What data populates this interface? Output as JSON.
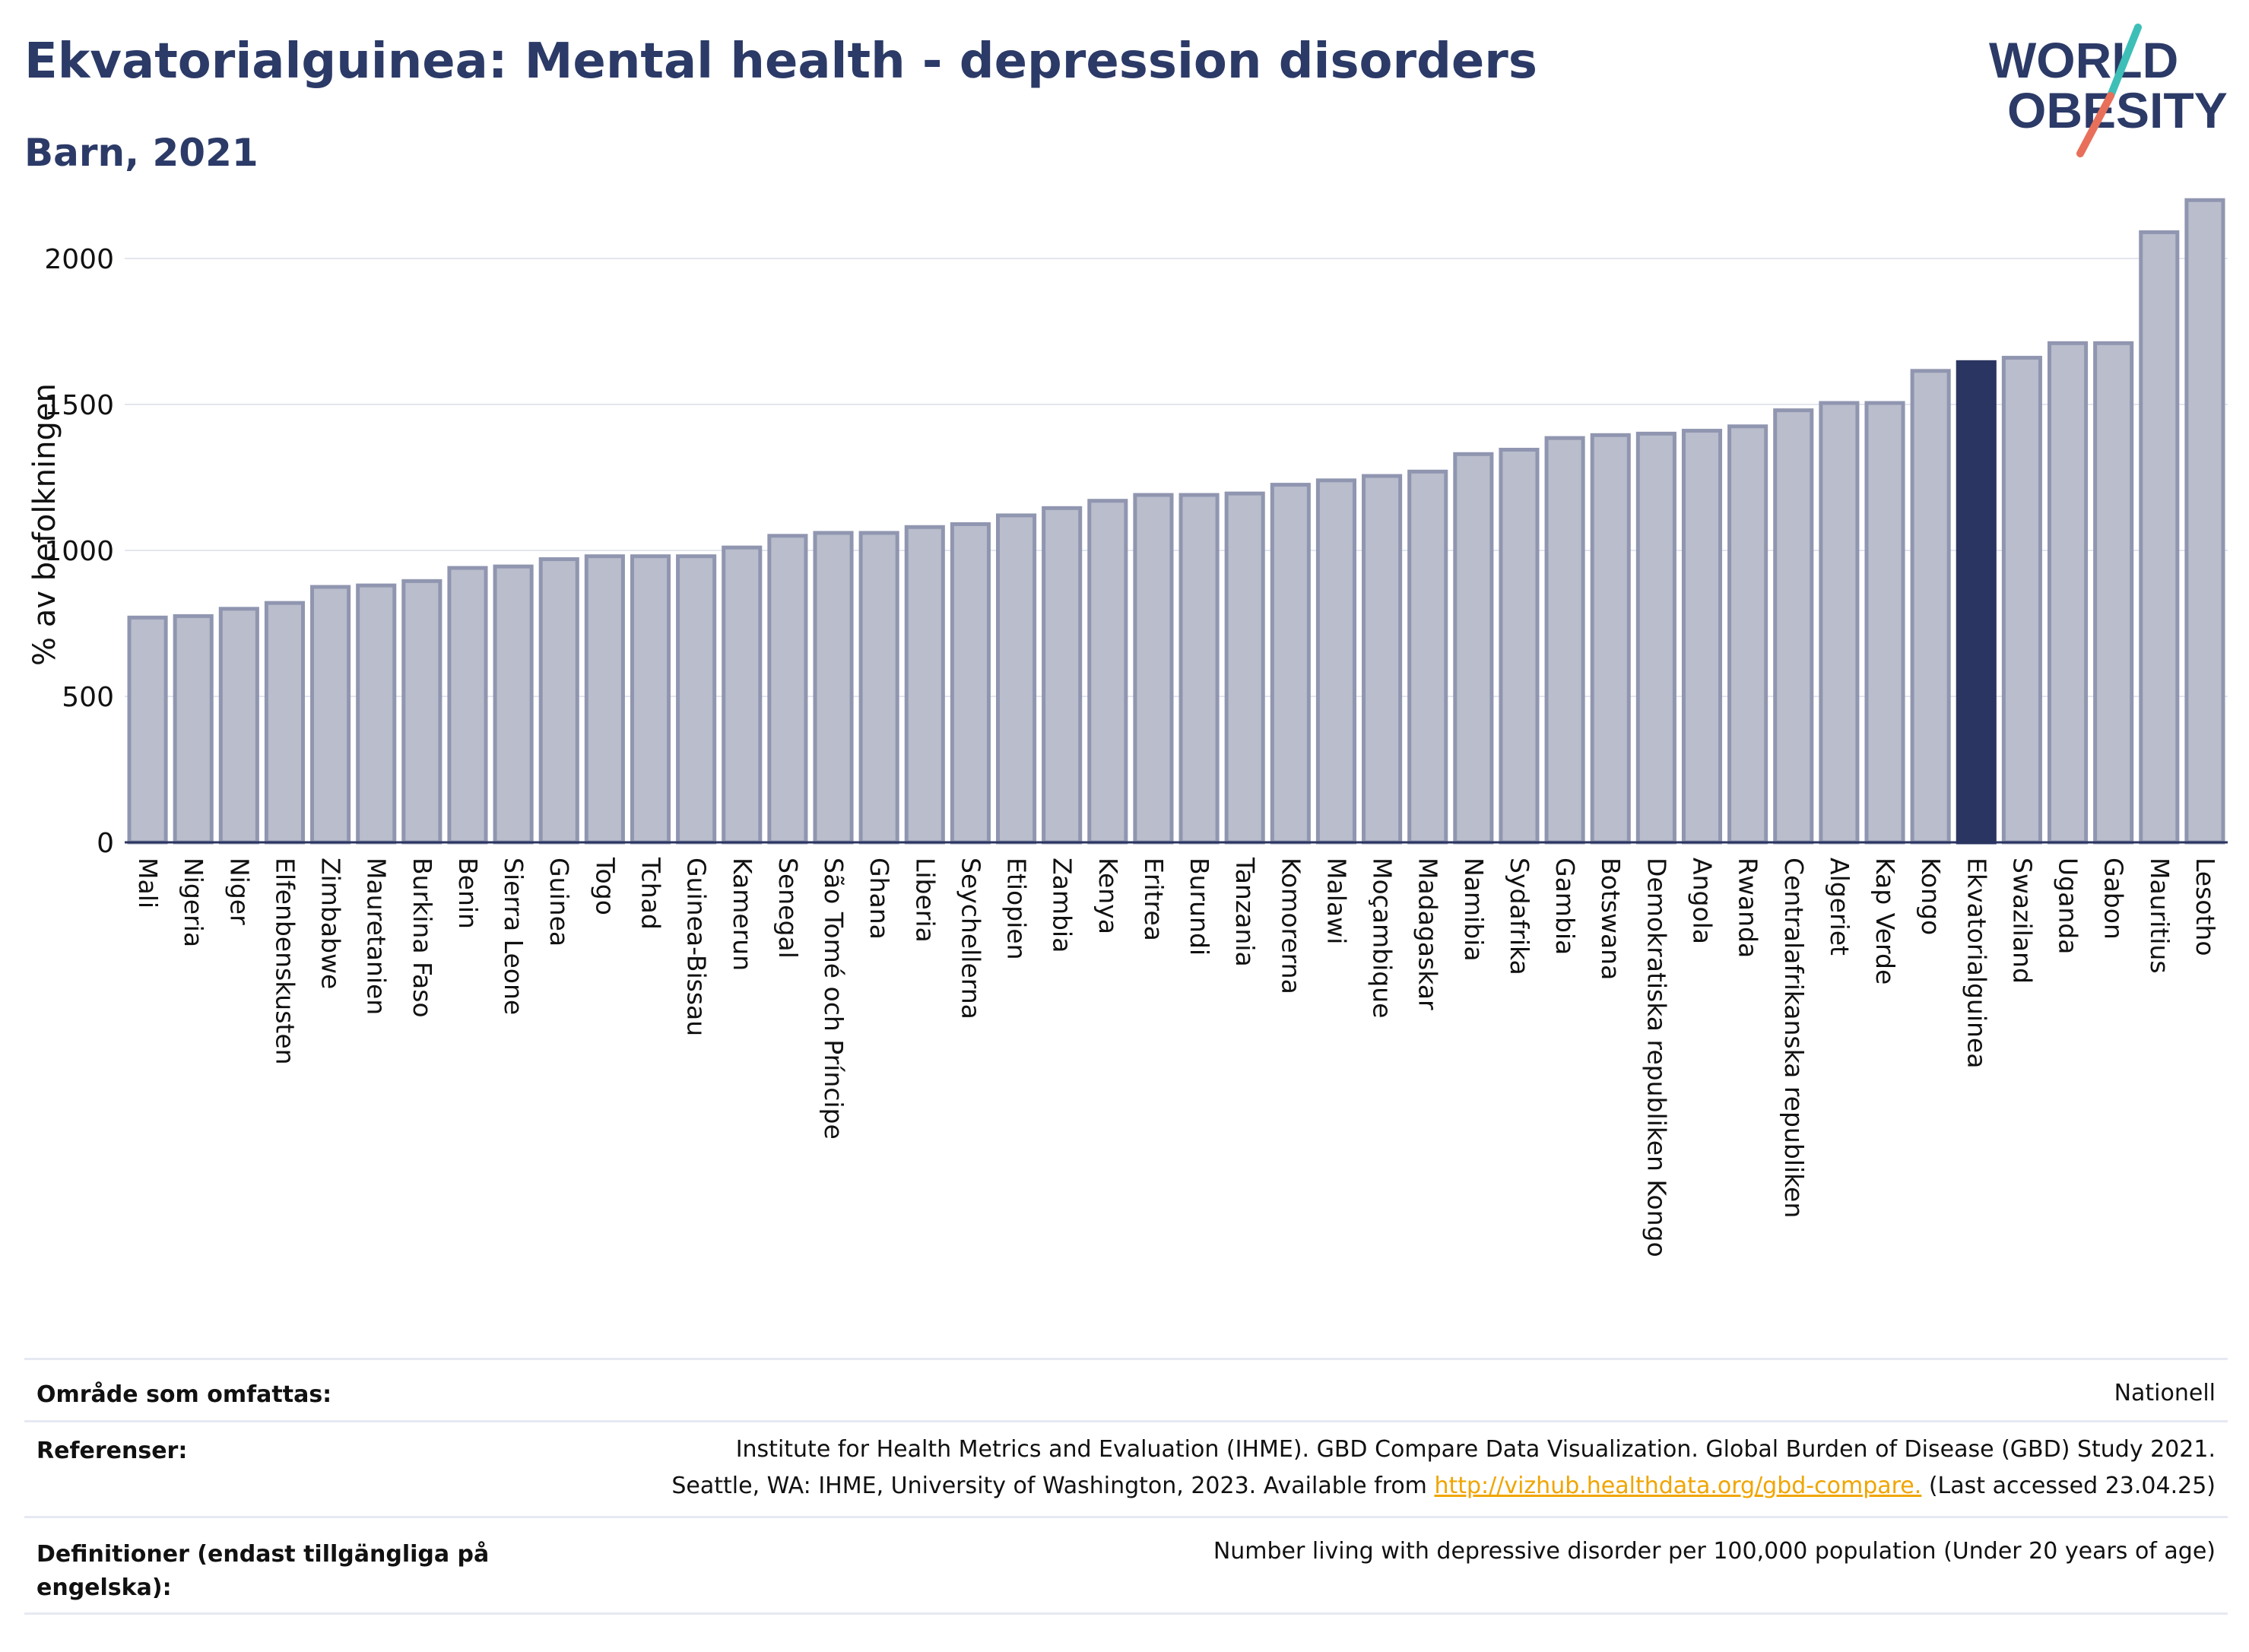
{
  "header": {
    "title": "Ekvatorialguinea: Mental health - depression disorders",
    "subtitle": "Barn, 2021"
  },
  "logo": {
    "line1": "WORLD",
    "line2": "OBESITY"
  },
  "chart_data": {
    "type": "bar",
    "ylabel": "% av befolkningen",
    "ylim": [
      0,
      2250
    ],
    "yticks": [
      0,
      500,
      1000,
      1500,
      2000
    ],
    "grid": true,
    "highlight": "Ekvatorialguinea",
    "highlight_color": "#2b3561",
    "bar_color": "#b9bdcc",
    "bar_edge_color": "#9096b0",
    "categories": [
      "Mali",
      "Nigeria",
      "Niger",
      "Elfenbenskusten",
      "Zimbabwe",
      "Mauretanien",
      "Burkina Faso",
      "Benin",
      "Sierra Leone",
      "Guinea",
      "Togo",
      "Tchad",
      "Guinea-Bissau",
      "Kamerun",
      "Senegal",
      "São Tomé och Príncipe",
      "Ghana",
      "Liberia",
      "Seychellerna",
      "Etiopien",
      "Zambia",
      "Kenya",
      "Eritrea",
      "Burundi",
      "Tanzania",
      "Komorerna",
      "Malawi",
      "Moçambique",
      "Madagaskar",
      "Namibia",
      "Sydafrika",
      "Gambia",
      "Botswana",
      "Demokratiska republiken Kongo",
      "Angola",
      "Rwanda",
      "Centralafrikanska republiken",
      "Algeriet",
      "Kap Verde",
      "Kongo",
      "Ekvatorialguinea",
      "Swaziland",
      "Uganda",
      "Gabon",
      "Mauritius",
      "Lesotho"
    ],
    "values": [
      770,
      775,
      800,
      820,
      875,
      880,
      895,
      940,
      945,
      970,
      980,
      980,
      980,
      1010,
      1050,
      1060,
      1060,
      1080,
      1090,
      1120,
      1145,
      1170,
      1190,
      1190,
      1195,
      1225,
      1240,
      1255,
      1270,
      1330,
      1345,
      1385,
      1395,
      1400,
      1410,
      1425,
      1480,
      1505,
      1505,
      1615,
      1645,
      1660,
      1710,
      1710,
      2090,
      2200
    ]
  },
  "info": {
    "coverage_label": "Område som omfattas:",
    "coverage_value": "Nationell",
    "references_label": "Referenser:",
    "references_line1": "Institute for Health Metrics and Evaluation (IHME). GBD Compare Data Visualization. Global Burden of Disease (GBD) Study 2021.",
    "references_line2_pre": "Seattle, WA: IHME, University of Washington, 2023. Available from ",
    "references_link": "http://vizhub.healthdata.org/gbd-compare.",
    "references_line2_post": " (Last accessed 23.04.25)",
    "definitions_label_1": "Definitioner (endast tillgängliga på",
    "definitions_label_2": "engelska):",
    "definitions_value": "Number living with depressive disorder per 100,000 population (Under 20 years of age)"
  }
}
